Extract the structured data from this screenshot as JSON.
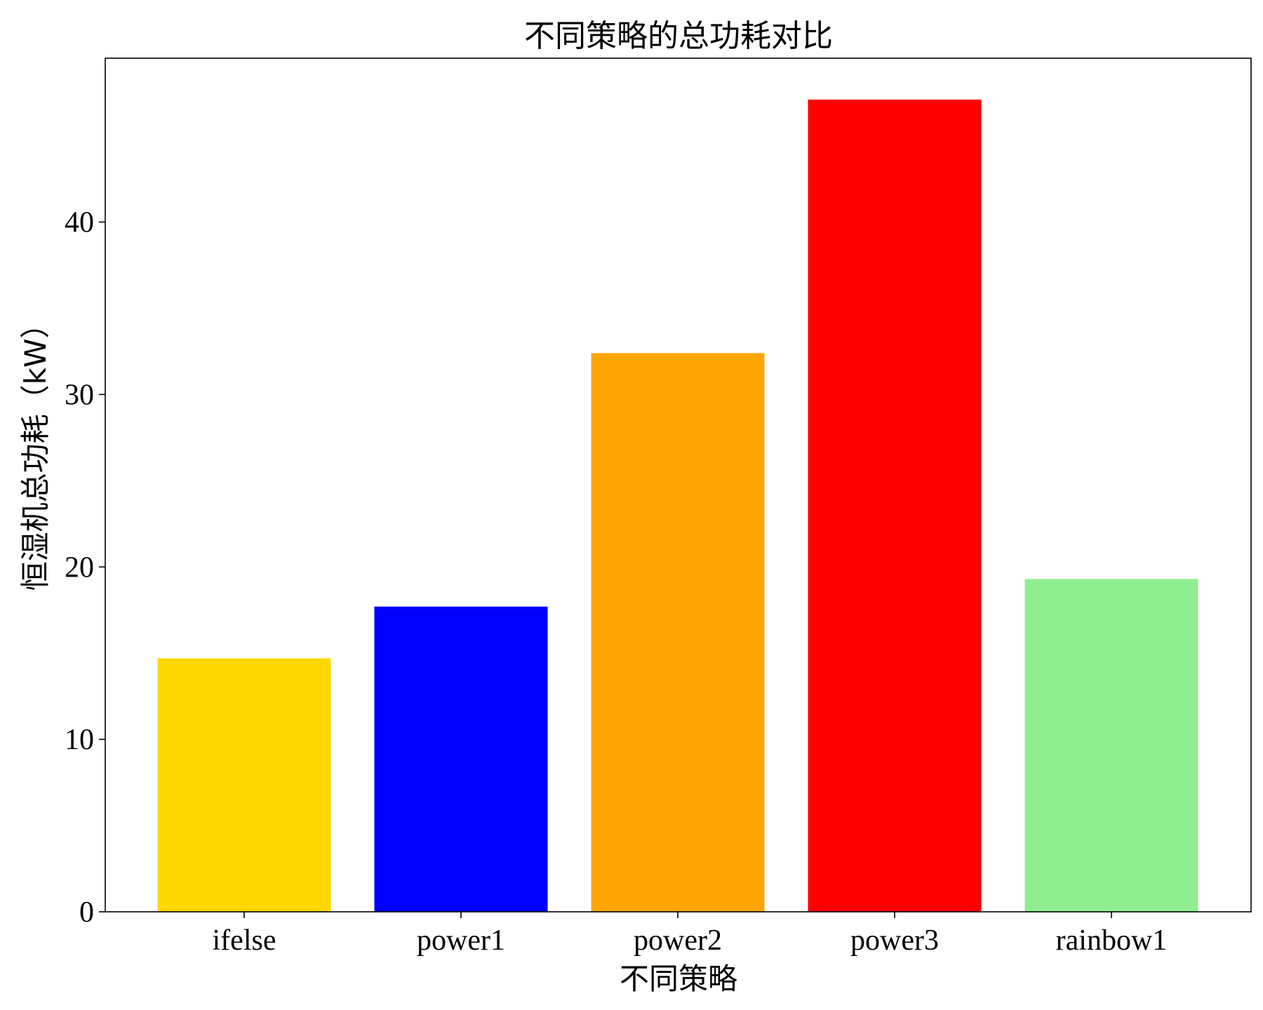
{
  "chart_data": {
    "type": "bar",
    "title": "不同策略的总功耗对比",
    "xlabel": "不同策略",
    "ylabel": "恒湿机总功耗（kW）",
    "categories": [
      "ifelse",
      "power1",
      "power2",
      "power3",
      "rainbow1"
    ],
    "values": [
      14.7,
      17.7,
      32.4,
      47.1,
      19.3
    ],
    "colors": [
      "#FFD700",
      "#0000FF",
      "#FFA500",
      "#FF0000",
      "#90EE90"
    ],
    "ylim": [
      0,
      49.5
    ],
    "yticks": [
      0,
      10,
      20,
      30,
      40
    ],
    "grid": false,
    "legend": "none"
  }
}
